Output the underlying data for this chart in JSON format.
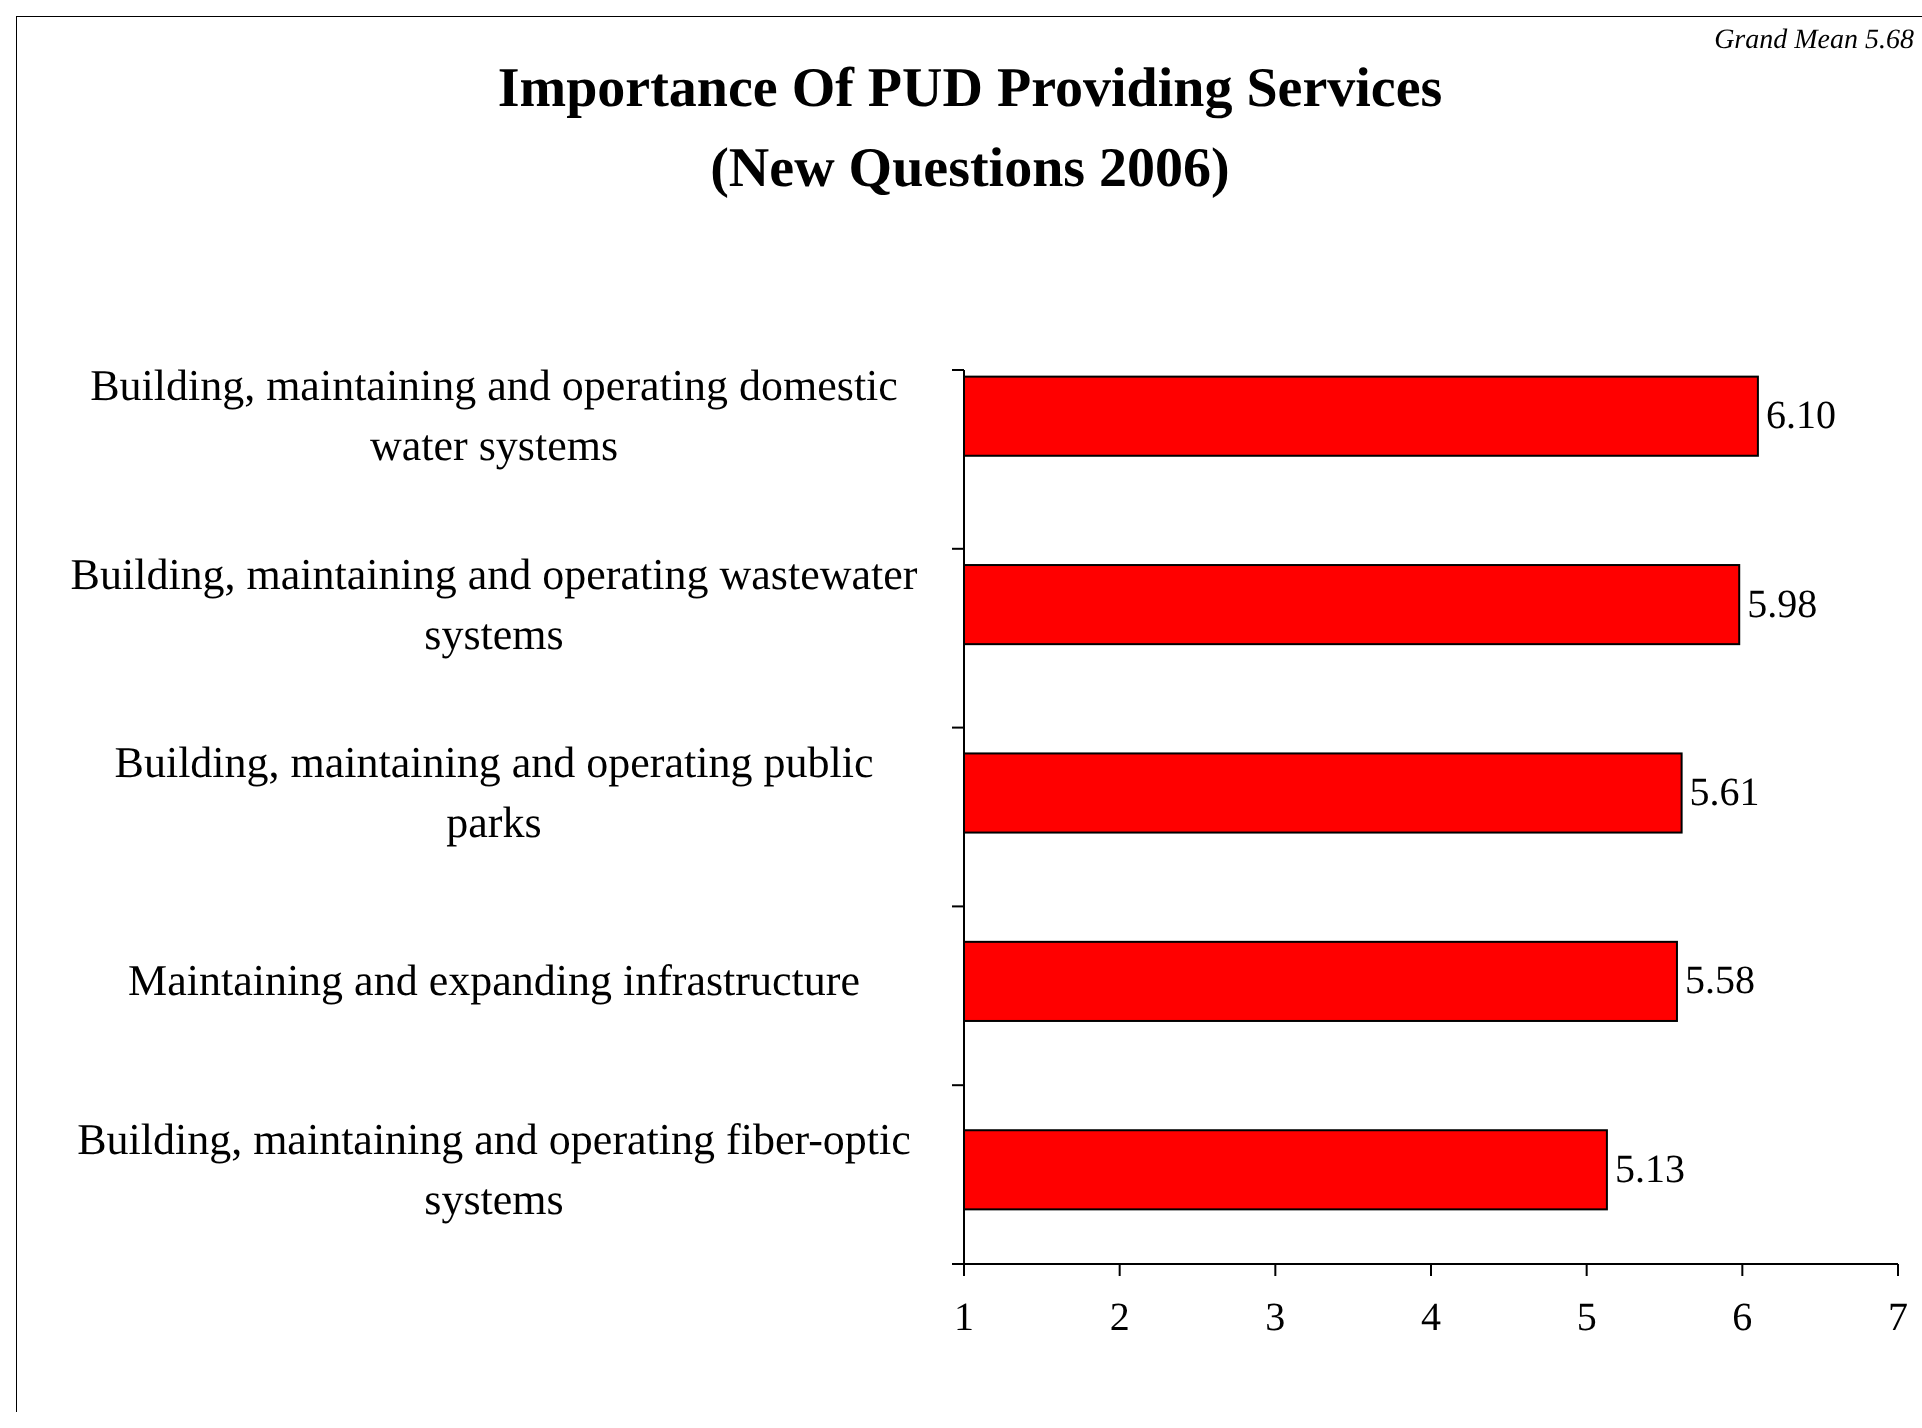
{
  "chart_data": {
    "type": "bar",
    "orientation": "horizontal",
    "title": "Importance Of PUD Providing Services\n(New Questions 2006)",
    "annotations": [
      "Grand Mean 5.68"
    ],
    "categories": [
      "Building, maintaining and operating domestic water systems",
      "Building, maintaining and operating wastewater systems",
      "Building, maintaining and operating public parks",
      "Maintaining and expanding infrastructure",
      "Building, maintaining and operating fiber-optic systems"
    ],
    "values": [
      6.1,
      5.98,
      5.61,
      5.58,
      5.13
    ],
    "value_labels": [
      "6.10",
      "5.98",
      "5.61",
      "5.58",
      "5.13"
    ],
    "color": "#ff0000",
    "xlim": [
      1,
      7
    ],
    "xticks": [
      1,
      2,
      3,
      4,
      5,
      6,
      7
    ],
    "grid": false
  }
}
